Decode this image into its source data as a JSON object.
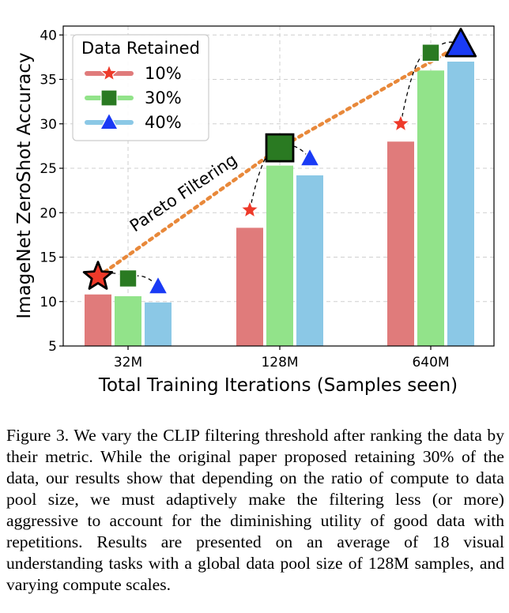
{
  "chart_data": {
    "type": "bar",
    "xlabel": "Total Training Iterations (Samples seen)",
    "ylabel": "ImageNet ZeroShot Accuracy",
    "categories": [
      "32M",
      "128M",
      "640M"
    ],
    "ylim": [
      5,
      41
    ],
    "yticks": [
      5,
      10,
      15,
      20,
      25,
      30,
      35,
      40
    ],
    "grid": true,
    "legend": {
      "title": "Data Retained",
      "position": "top-left"
    },
    "series": [
      {
        "name": "10%",
        "marker": "star",
        "bar_color": "#e07b7b",
        "marker_color": "#ee3a2a",
        "values": [
          10.8,
          18.3,
          28.0
        ],
        "marker_values": [
          12.8,
          20.3,
          30.0
        ]
      },
      {
        "name": "30%",
        "marker": "square",
        "bar_color": "#92e38a",
        "marker_color": "#2a7a22",
        "values": [
          10.6,
          25.3,
          36.0
        ],
        "marker_values": [
          12.6,
          27.3,
          38.0
        ]
      },
      {
        "name": "40%",
        "marker": "triangle",
        "bar_color": "#8bc8e6",
        "marker_color": "#1a3bf5",
        "values": [
          9.9,
          24.2,
          37.0
        ],
        "marker_values": [
          11.7,
          26.1,
          38.9
        ]
      }
    ],
    "pareto": {
      "label": "Pareto Filtering",
      "color": "#e8883a",
      "points": [
        {
          "category": "32M",
          "series": "10%",
          "value": 12.8
        },
        {
          "category": "128M",
          "series": "30%",
          "value": 27.3
        },
        {
          "category": "640M",
          "series": "40%",
          "value": 38.9
        }
      ]
    }
  },
  "caption": "Figure 3.  We vary the CLIP filtering threshold after ranking the data by their metric. While the original paper proposed retaining 30% of the data, our results show that depending on the ratio of compute to data pool size, we must adaptively make the filtering less (or more) aggressive to account for the diminishing utility of good data with repetitions. Results are presented on an average of 18 visual understanding tasks with a global data pool size of 128M samples, and varying compute scales."
}
